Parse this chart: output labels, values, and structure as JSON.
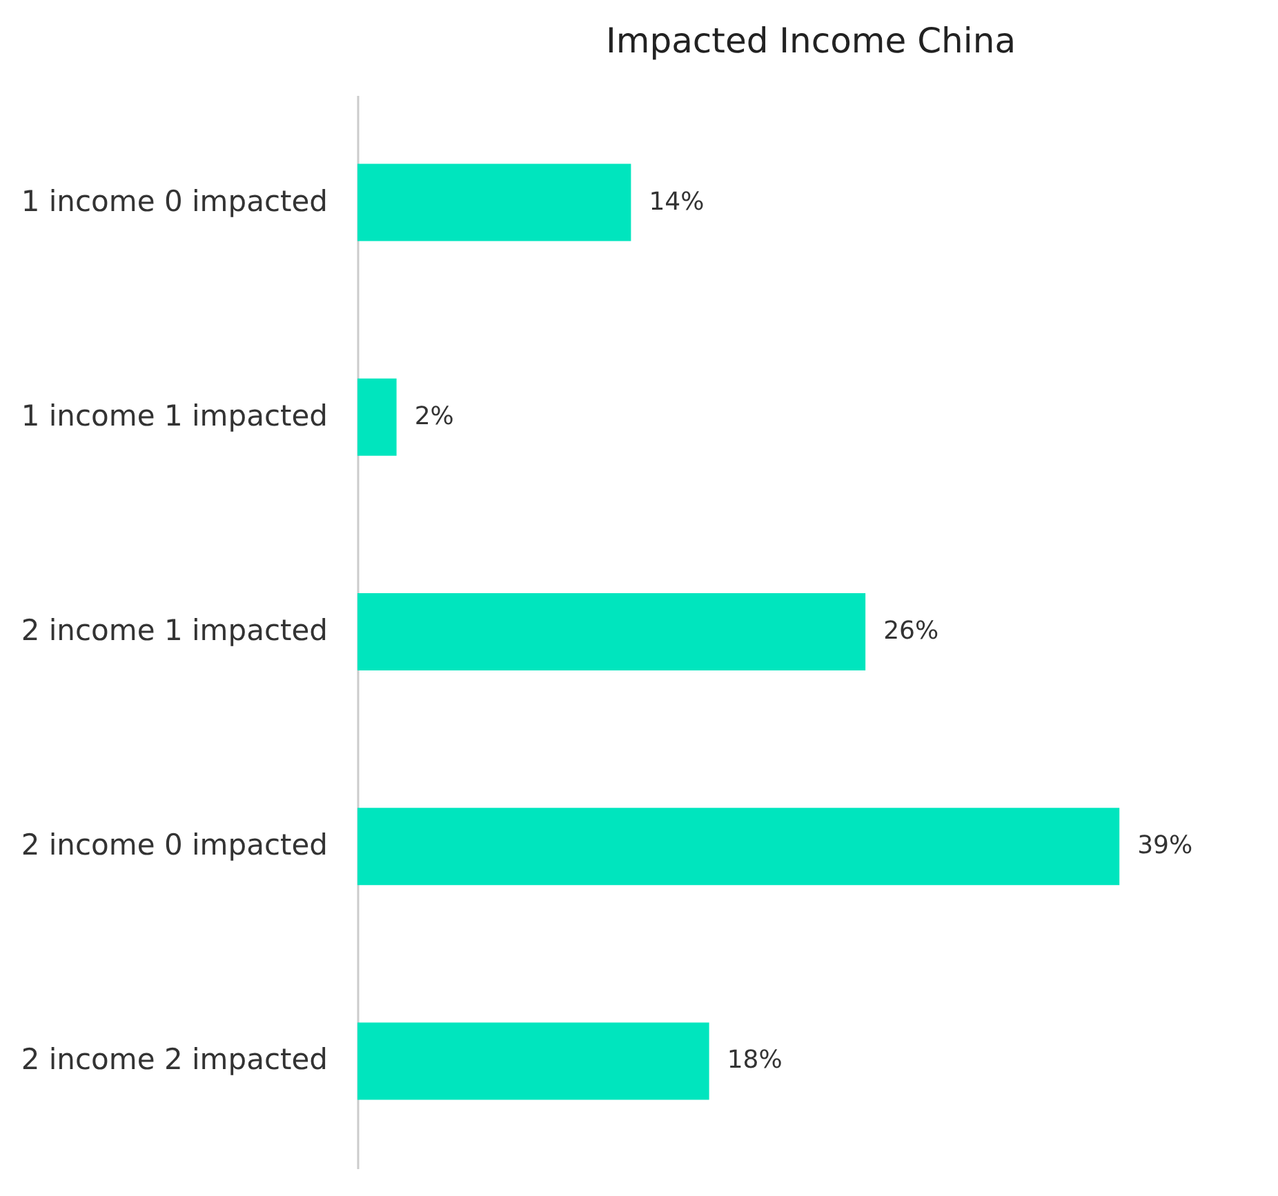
{
  "chart_data": {
    "type": "bar",
    "orientation": "horizontal",
    "title": "Impacted Income China",
    "categories": [
      "1 income 0 impacted",
      "1 income 1 impacted",
      "2 income 1 impacted",
      "2 income 0 impacted",
      "2 income 2 impacted"
    ],
    "values": [
      14,
      2,
      26,
      39,
      18
    ],
    "value_labels": [
      "14%",
      "2%",
      "26%",
      "39%",
      "18%"
    ],
    "color": "#00e5be"
  }
}
